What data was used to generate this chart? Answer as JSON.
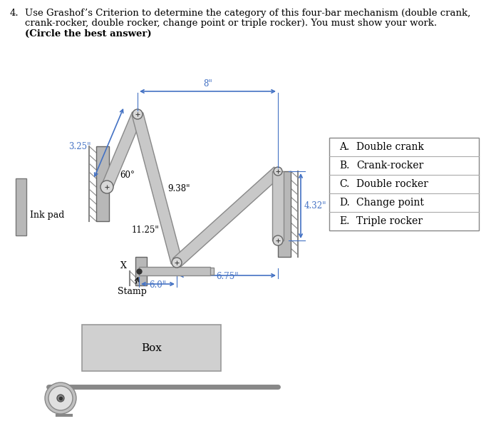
{
  "title_num": "4.",
  "title_line1": "Use Grashof’s Criterion to determine the category of this four-bar mechanism (double crank,",
  "title_line2": "crank-rocker, double rocker, change point or triple rocker). You must show your work.",
  "title_line3": "(Circle the best answer)",
  "choices": [
    [
      "A.",
      "Double crank"
    ],
    [
      "B.",
      "Crank-rocker"
    ],
    [
      "C.",
      "Double rocker"
    ],
    [
      "D.",
      "Change point"
    ],
    [
      "E.",
      "Triple rocker"
    ]
  ],
  "dim_8": "8\"",
  "dim_3_25": "3.25\"",
  "dim_9_38": "9.38\"",
  "dim_11_25": "11.25\"",
  "dim_4_32": "4.32\"",
  "dim_6_75": "6.75\"",
  "dim_6_0": "6.0\"",
  "dim_60": "60°",
  "label_inkpad": "Ink pad",
  "label_x": "X",
  "label_stamp": "Stamp",
  "label_box": "Box",
  "bg_color": "#ffffff",
  "text_color": "#000000",
  "link_color": "#c0c0c0",
  "link_edge": "#888888",
  "wall_color": "#b8b8b8",
  "hatch_color": "#888888",
  "dim_color": "#4472C4",
  "inkpad_color": "#b8b8b8",
  "box_color": "#c8c8c8",
  "wheel_color": "#b0b0b0",
  "conveyor_color": "#a0a0a0"
}
